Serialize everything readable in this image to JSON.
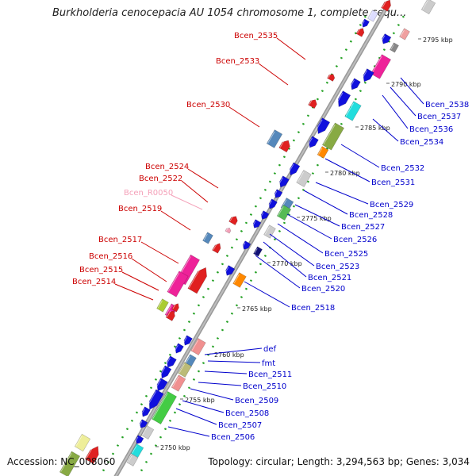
{
  "title": "Burkholderia cenocepacia AU 1054 chromosome 1, complete sequ...",
  "footer": {
    "accession": "Accession: NC_008060",
    "summary": "Topology: circular; Length: 3,294,563 bp; Genes: 3,034"
  },
  "colors": {
    "forward_label": "#cc0000",
    "reverse_label": "#0000cc",
    "rna_label": "#f4a0b8",
    "backbone": "#999999",
    "dots": "#22a022"
  },
  "kbp_ticks": [
    "2750 kbp",
    "2755 kbp",
    "2760 kbp",
    "2765 kbp",
    "2770 kbp",
    "2775 kbp",
    "2780 kbp",
    "2785 kbp",
    "2790 kbp",
    "2795 kbp"
  ],
  "forward_labels": [
    "Bcen_2535",
    "Bcen_2533",
    "Bcen_2530",
    "Bcen_2524",
    "Bcen_2522",
    "Bcen_R0050",
    "Bcen_2519",
    "Bcen_2517",
    "Bcen_2516",
    "Bcen_2515",
    "Bcen_2514"
  ],
  "reverse_labels": [
    "Bcen_2538",
    "Bcen_2537",
    "Bcen_2536",
    "Bcen_2534",
    "Bcen_2532",
    "Bcen_2531",
    "Bcen_2529",
    "Bcen_2528",
    "Bcen_2527",
    "Bcen_2526",
    "Bcen_2525",
    "Bcen_2523",
    "Bcen_2521",
    "Bcen_2520",
    "Bcen_2518",
    "def",
    "fmt",
    "Bcen_2511",
    "Bcen_2510",
    "Bcen_2509",
    "Bcen_2508",
    "Bcen_2507",
    "Bcen_2506"
  ]
}
